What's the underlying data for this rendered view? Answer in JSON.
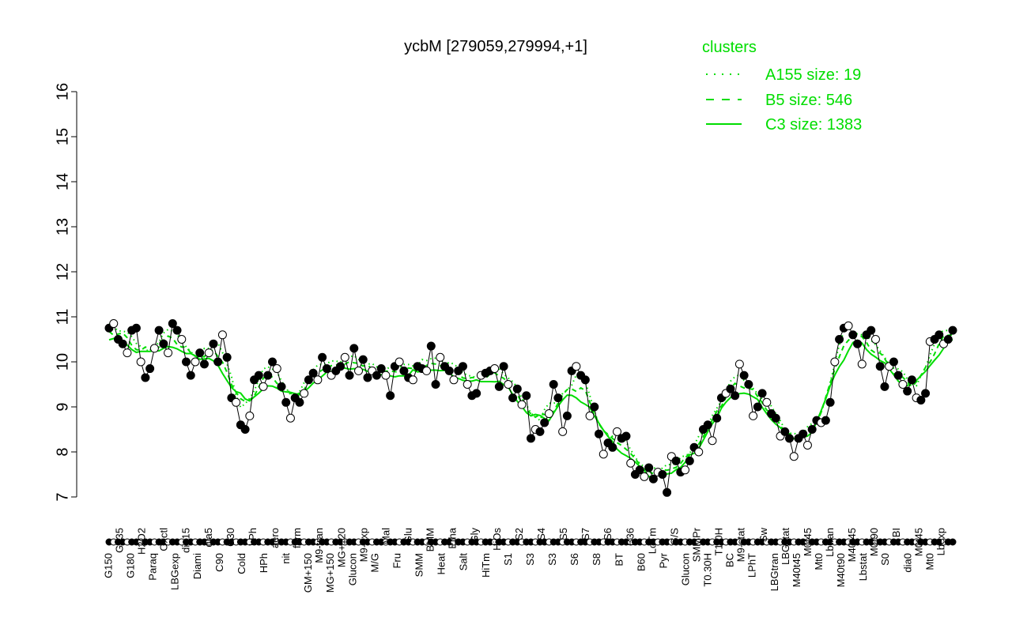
{
  "chart_data": {
    "type": "line",
    "title": "ycbM [279059,279994,+1]",
    "xlabel": "",
    "ylabel": "",
    "ylim": [
      7,
      16
    ],
    "yticks": [
      7,
      8,
      9,
      10,
      11,
      12,
      13,
      14,
      15,
      16
    ],
    "grid": false,
    "legend": {
      "title": "clusters",
      "placement": "top-right",
      "entries": [
        {
          "label": "A155 size: 19",
          "style": "dotted"
        },
        {
          "label": "B5 size: 546",
          "style": "dashed"
        },
        {
          "label": "C3 size: 1383",
          "style": "solid"
        }
      ]
    },
    "colors": {
      "cluster": "#00dd00",
      "points": "#000000"
    },
    "values": [
      10.75,
      10.85,
      10.5,
      10.4,
      10.2,
      10.7,
      10.75,
      10.0,
      9.65,
      9.85,
      10.3,
      10.7,
      10.4,
      10.2,
      10.85,
      10.7,
      10.5,
      10.0,
      9.7,
      10.0,
      10.2,
      9.95,
      10.2,
      10.4,
      10.0,
      10.6,
      10.1,
      9.2,
      9.1,
      8.6,
      8.5,
      8.8,
      9.6,
      9.7,
      9.45,
      9.7,
      10.0,
      9.85,
      9.45,
      9.1,
      8.75,
      9.2,
      9.1,
      9.3,
      9.6,
      9.75,
      9.6,
      10.1,
      9.85,
      9.7,
      9.8,
      9.9,
      10.1,
      9.7,
      10.3,
      9.8,
      10.05,
      9.65,
      9.8,
      9.7,
      9.85,
      9.7,
      9.25,
      9.9,
      10.0,
      9.8,
      9.65,
      9.6,
      9.9,
      9.85,
      9.8,
      10.35,
      9.5,
      10.1,
      9.9,
      9.8,
      9.6,
      9.8,
      9.9,
      9.5,
      9.25,
      9.3,
      9.7,
      9.75,
      9.8,
      9.85,
      9.45,
      9.9,
      9.5,
      9.2,
      9.4,
      9.05,
      9.25,
      8.3,
      8.5,
      8.45,
      8.65,
      8.85,
      9.5,
      9.2,
      8.45,
      8.8,
      9.8,
      9.9,
      9.7,
      9.6,
      8.8,
      9.0,
      8.4,
      7.95,
      8.2,
      8.1,
      8.45,
      8.3,
      8.35,
      7.75,
      7.5,
      7.6,
      7.45,
      7.65,
      7.4,
      7.55,
      7.5,
      7.1,
      7.9,
      7.8,
      7.55,
      7.6,
      7.8,
      8.1,
      8.0,
      8.5,
      8.6,
      8.25,
      8.75,
      9.2,
      9.3,
      9.4,
      9.25,
      9.95,
      9.7,
      9.5,
      8.8,
      9.0,
      9.3,
      9.1,
      8.85,
      8.75,
      8.35,
      8.45,
      8.3,
      7.9,
      8.3,
      8.4,
      8.15,
      8.5,
      8.7,
      8.65,
      8.7,
      9.1,
      10.0,
      10.5,
      10.75,
      10.8,
      10.6,
      10.4,
      9.95,
      10.6,
      10.7,
      10.5,
      9.9,
      9.45,
      9.9,
      10.0,
      9.7,
      9.5,
      9.35,
      9.6,
      9.2,
      9.15,
      9.3,
      10.45,
      10.5,
      10.6,
      10.4,
      10.5,
      10.7
    ],
    "x_labels_upper": [
      "G135",
      "H2O2",
      "Oxctl",
      "dia15",
      "dia5",
      "C30",
      "LPh",
      "aero",
      "ferm",
      "M9-tran",
      "MG+120",
      "M9-exp",
      "Mal",
      "Glu",
      "BMM",
      "Etha",
      "Gly",
      "HiOs",
      "S2",
      "S4",
      "S5",
      "S7",
      "S6",
      "B36",
      "LoTm",
      "G/S",
      "SMMPr",
      "T1.0H",
      "M9-stat",
      "Sw",
      "LBGstat",
      "M0t45",
      "Lbtran",
      "M40t45",
      "M0t90",
      "BI",
      "M0t45",
      "Lbexp"
    ],
    "x_labels_lower": [
      "G150",
      "G180",
      "Paraq",
      "LBGexp",
      "Diami",
      "C90",
      "Cold",
      "HPh",
      "nit",
      "GM+150",
      "MG+150",
      "Glucon",
      "M/G",
      "Fru",
      "SMM",
      "Heat",
      "Salt",
      "HiTm",
      "S1",
      "S3",
      "S3",
      "S6",
      "S8",
      "BT",
      "B60",
      "Pyr",
      "Glucon",
      "T0.30H",
      "BC",
      "LPhT",
      "LBGtran",
      "M40t45",
      "Mt0",
      "M40t90",
      "Lbstat",
      "S0",
      "dia0",
      "Mt0"
    ]
  }
}
